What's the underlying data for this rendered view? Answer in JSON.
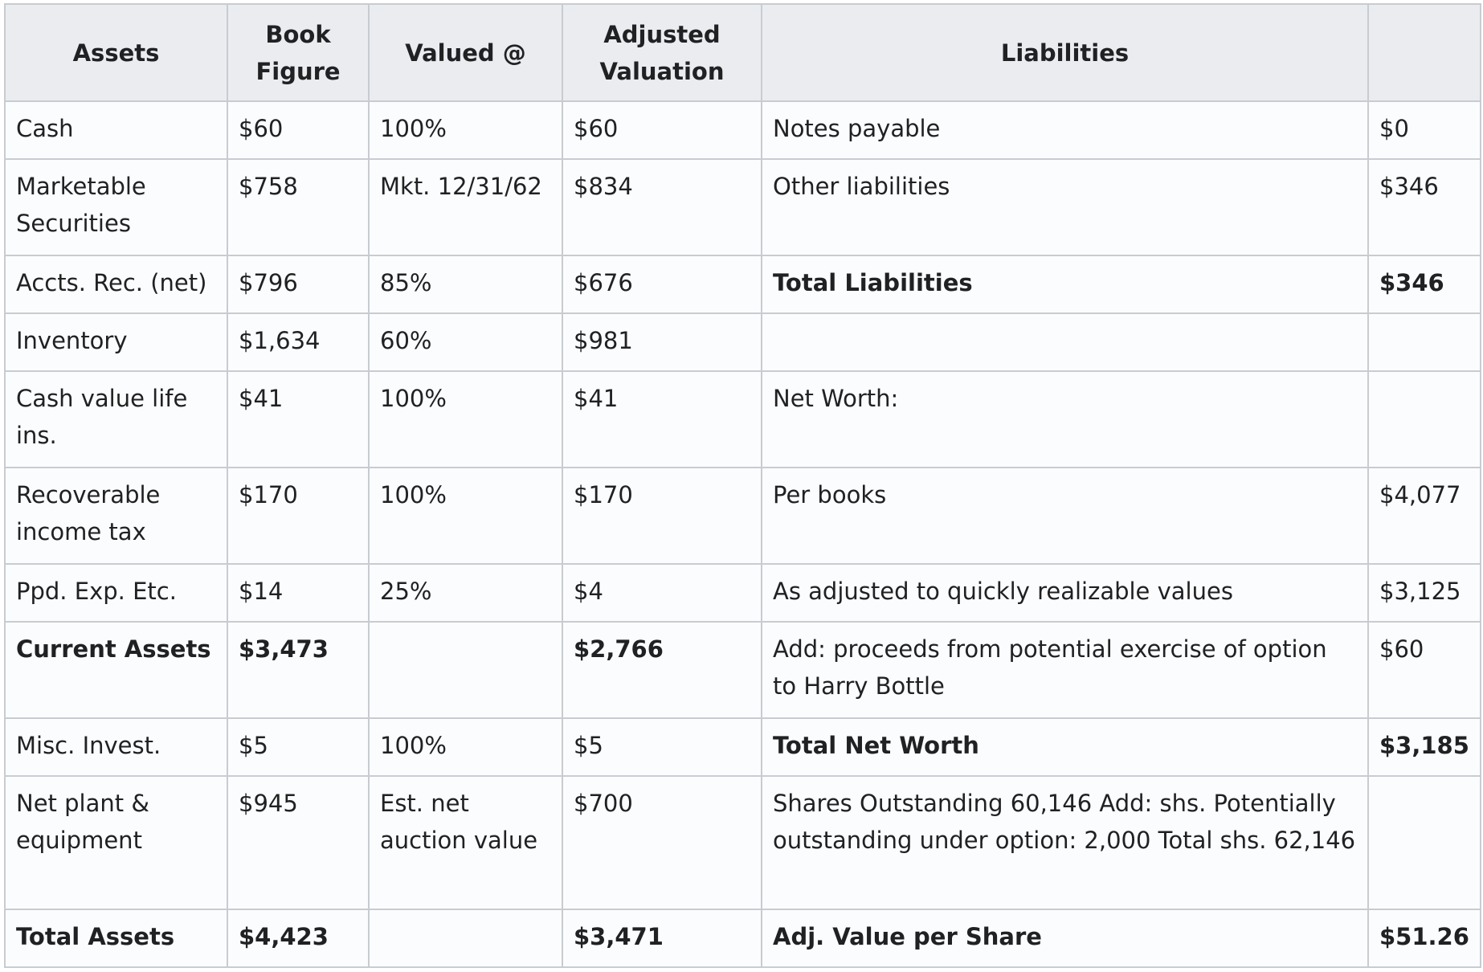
{
  "header": {
    "assets": "Assets",
    "book_figure": "Book Figure",
    "valued_at": "Valued @",
    "adjusted_valuation": "Adjusted Valuation",
    "liabilities": "Liabilities",
    "amount": ""
  },
  "rows": [
    {
      "asset": "Cash",
      "book": "$60",
      "valued": "100%",
      "adjusted": "$60",
      "liability": "Notes payable",
      "amount": "$0"
    },
    {
      "asset": "Marketable Securities",
      "book": "$758",
      "valued": "Mkt. 12/31/62",
      "adjusted": "$834",
      "liability": "Other liabilities",
      "amount": "$346"
    },
    {
      "asset": "Accts. Rec. (net)",
      "book": "$796",
      "valued": "85%",
      "adjusted": "$676",
      "liability": "Total Liabilities",
      "amount": "$346"
    },
    {
      "asset": "Inventory",
      "book": "$1,634",
      "valued": "60%",
      "adjusted": "$981",
      "liability": "",
      "amount": ""
    },
    {
      "asset": "Cash value life ins.",
      "book": "$41",
      "valued": "100%",
      "adjusted": "$41",
      "liability": "Net Worth:",
      "amount": ""
    },
    {
      "asset": "Recoverable income tax",
      "book": "$170",
      "valued": "100%",
      "adjusted": "$170",
      "liability": "Per books",
      "amount": "$4,077"
    },
    {
      "asset": "Ppd. Exp. Etc.",
      "book": "$14",
      "valued": "25%",
      "adjusted": "$4",
      "liability": "As adjusted to quickly realizable values",
      "amount": "$3,125"
    },
    {
      "asset": "Current Assets",
      "book": "$3,473",
      "valued": "",
      "adjusted": "$2,766",
      "liability": "Add: proceeds from potential exercise of option to Harry Bottle",
      "amount": "$60"
    },
    {
      "asset": "Misc. Invest.",
      "book": "$5",
      "valued": "100%",
      "adjusted": "$5",
      "liability": "Total Net Worth",
      "amount": "$3,185"
    },
    {
      "asset": "Net plant & equipment",
      "book": "$945",
      "valued": "Est. net auction value",
      "adjusted": "$700",
      "liability": "Shares Outstanding 60,146 Add: shs. Potentially outstanding under option: 2,000 Total shs. 62,146",
      "amount": ""
    },
    {
      "asset": "Total Assets",
      "book": "$4,423",
      "valued": "",
      "adjusted": "$3,471",
      "liability": "Adj. Value per Share",
      "amount": "$51.26"
    }
  ]
}
